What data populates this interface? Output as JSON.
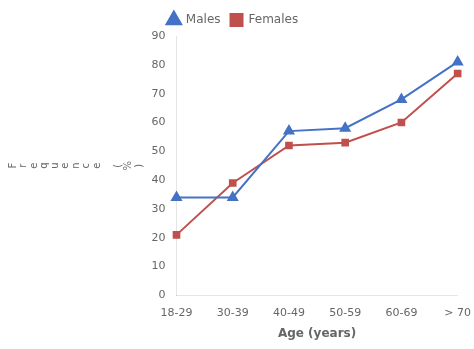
{
  "chart_data": {
    "type": "line",
    "xlabel": "Age (years)",
    "ylabel": "Frequence (%)",
    "categories": [
      "18-29",
      "30-39",
      "40-49",
      "50-59",
      "60-69",
      "> 70"
    ],
    "series": [
      {
        "name": "Males",
        "color": "#4472C4",
        "marker": "triangle",
        "values": [
          34,
          34,
          57,
          58,
          68,
          81
        ]
      },
      {
        "name": "Females",
        "color": "#C0504D",
        "marker": "square",
        "values": [
          21,
          39,
          52,
          53,
          60,
          77
        ]
      }
    ],
    "ylim": [
      0,
      90
    ],
    "yticks": [
      0,
      10,
      20,
      30,
      40,
      50,
      60,
      70,
      80,
      90
    ],
    "grid": false,
    "legend": "top"
  }
}
